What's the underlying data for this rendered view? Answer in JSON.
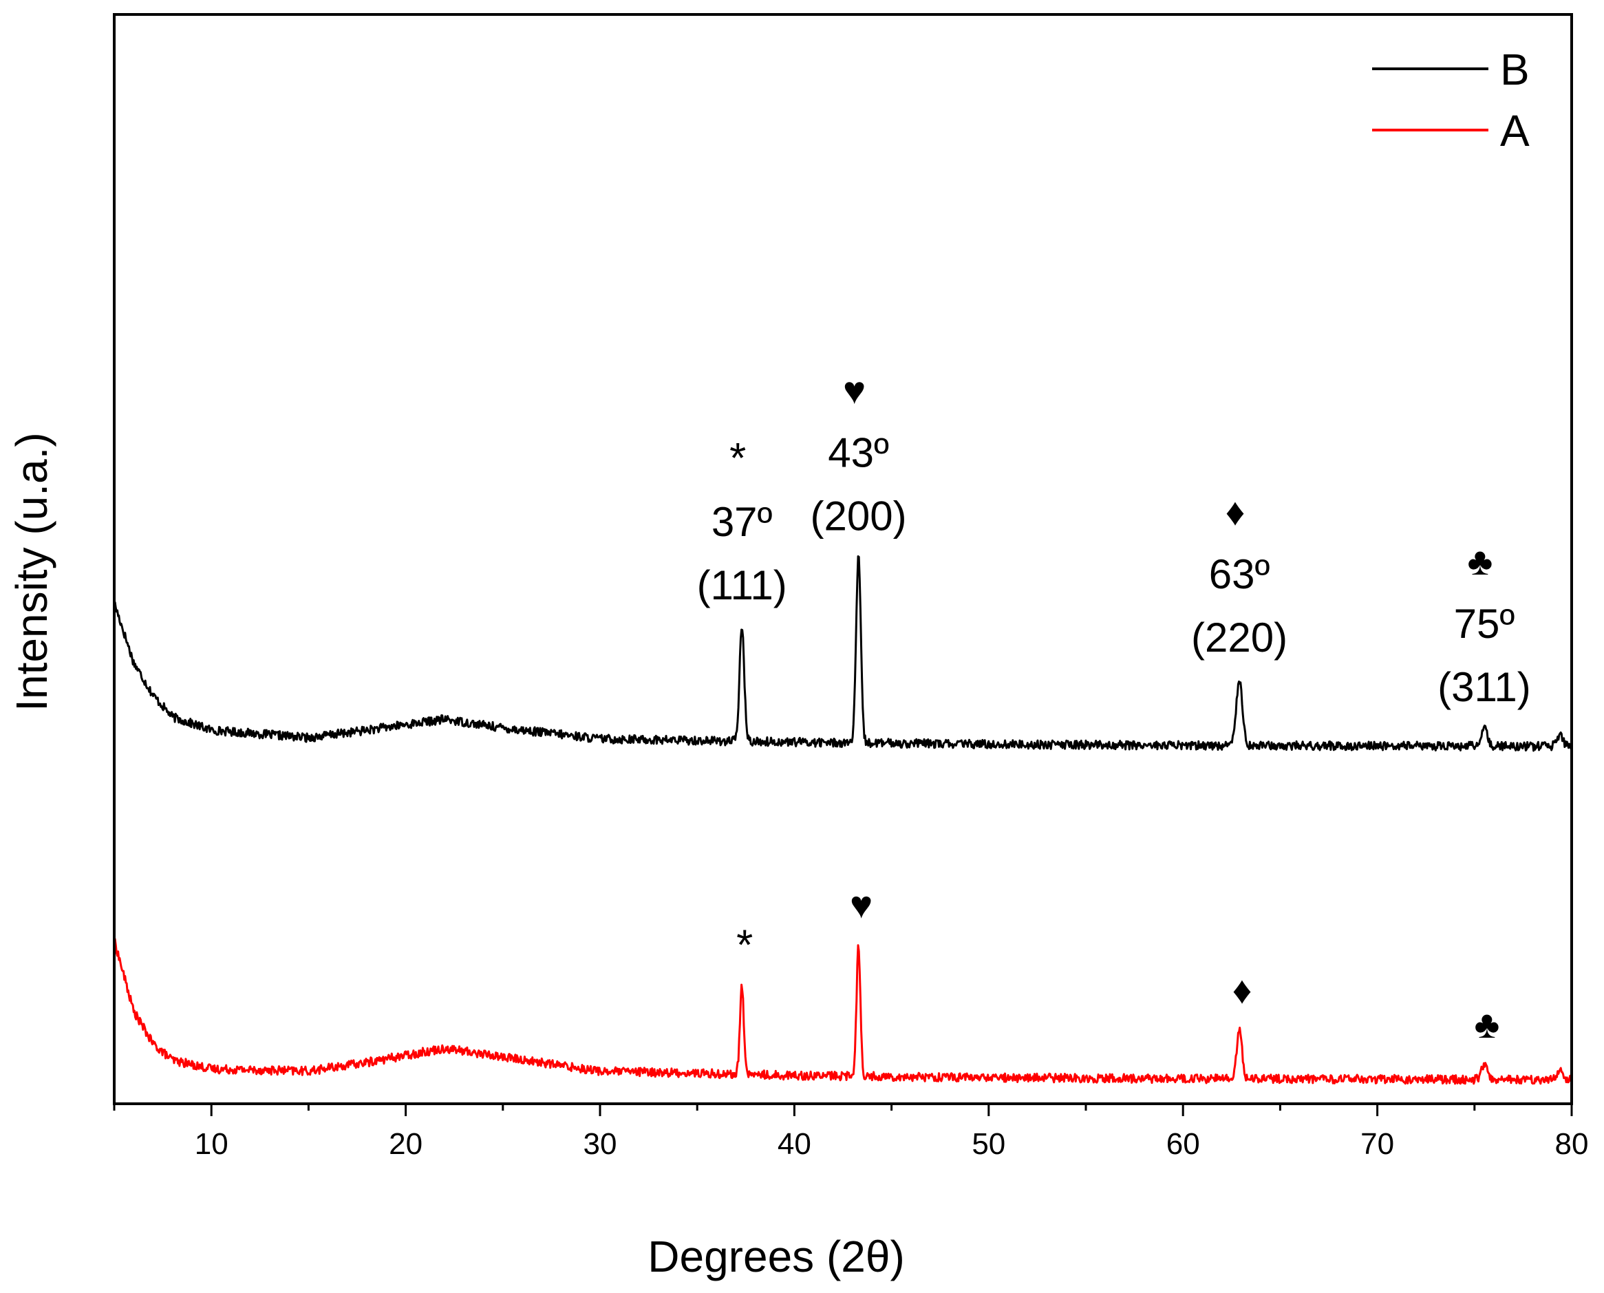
{
  "chart_data": {
    "type": "line",
    "xlabel": "Degrees (2θ)",
    "ylabel": "Intensity (u.a.)",
    "xlim": [
      5,
      80
    ],
    "ylim": [
      0,
      100
    ],
    "xticks": [
      10,
      20,
      30,
      40,
      50,
      60,
      70,
      80
    ],
    "yticks_shown": false,
    "legend": {
      "position": "top-right",
      "entries": [
        {
          "label": "B",
          "color": "#000000"
        },
        {
          "label": "A",
          "color": "#ff0000"
        }
      ]
    },
    "series": [
      {
        "name": "B",
        "color": "#000000",
        "baseline": [
          [
            5,
            46
          ],
          [
            6,
            40.5
          ],
          [
            7,
            37.5
          ],
          [
            8,
            35.5
          ],
          [
            10,
            34.3
          ],
          [
            15,
            33.6
          ],
          [
            18,
            34.3
          ],
          [
            22,
            35.3
          ],
          [
            25,
            34.5
          ],
          [
            30,
            33.5
          ],
          [
            40,
            33.2
          ],
          [
            50,
            33.0
          ],
          [
            60,
            32.9
          ],
          [
            80,
            32.8
          ]
        ],
        "peaks": [
          {
            "x": 37.3,
            "height": 10.5,
            "width": 0.12,
            "symbol": "*",
            "angle_label": "37º",
            "hkl_label": "(111)"
          },
          {
            "x": 43.3,
            "height": 17.0,
            "width": 0.12,
            "symbol": "♥",
            "angle_label": "43º",
            "hkl_label": "(200)"
          },
          {
            "x": 62.9,
            "height": 6.1,
            "width": 0.16,
            "symbol": "♦",
            "angle_label": "63º",
            "hkl_label": "(220)"
          },
          {
            "x": 75.5,
            "height": 1.6,
            "width": 0.16,
            "symbol": "♣",
            "angle_label": "75º",
            "hkl_label": "(311)"
          },
          {
            "x": 79.4,
            "height": 1.0,
            "width": 0.16
          }
        ],
        "noise": 0.4
      },
      {
        "name": "A",
        "color": "#ff0000",
        "baseline": [
          [
            5,
            15
          ],
          [
            6,
            8.5
          ],
          [
            7,
            5.5
          ],
          [
            8,
            4.0
          ],
          [
            10,
            3.2
          ],
          [
            15,
            3.0
          ],
          [
            18,
            3.8
          ],
          [
            22,
            5.1
          ],
          [
            25,
            4.3
          ],
          [
            30,
            3.0
          ],
          [
            40,
            2.6
          ],
          [
            50,
            2.4
          ],
          [
            60,
            2.3
          ],
          [
            80,
            2.2
          ]
        ],
        "peaks": [
          {
            "x": 37.3,
            "height": 8.0,
            "width": 0.1,
            "symbol": "*"
          },
          {
            "x": 43.3,
            "height": 12.0,
            "width": 0.1,
            "symbol": "♥"
          },
          {
            "x": 62.9,
            "height": 4.4,
            "width": 0.14,
            "symbol": "♦"
          },
          {
            "x": 75.5,
            "height": 1.3,
            "width": 0.16,
            "symbol": "♣"
          },
          {
            "x": 79.4,
            "height": 0.9,
            "width": 0.16
          }
        ],
        "noise": 0.4
      }
    ]
  }
}
